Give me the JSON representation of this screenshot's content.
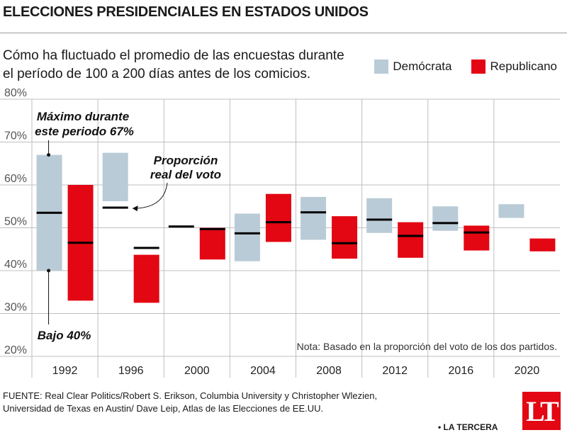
{
  "header": {
    "title": "ELECCIONES PRESIDENCIALES EN ESTADOS UNIDOS",
    "subtitle": "Cómo ha fluctuado el promedio de las encuestas durante el período de 100 a 200 días antes de los comicios."
  },
  "legend": {
    "dem_label": "Demócrata",
    "rep_label": "Republicano"
  },
  "colors": {
    "dem": "#b9cbd6",
    "rep": "#e30613",
    "actual": "#000000",
    "grid": "#bfbfbf"
  },
  "annotations": {
    "max": [
      "Máximo durante",
      "este periodo 67%"
    ],
    "min": "Bajo 40%",
    "actual": [
      "Proporción",
      "real del voto"
    ],
    "note": "Nota: Basado en la proporción del voto de los dos partidos."
  },
  "chart_data": {
    "type": "bar",
    "categories": [
      "1992",
      "1996",
      "2000",
      "2004",
      "2008",
      "2012",
      "2016",
      "2020"
    ],
    "ylim": [
      20,
      80
    ],
    "yticks": [
      20,
      30,
      40,
      50,
      60,
      70,
      80
    ],
    "ytick_labels": [
      "20%",
      "30%",
      "40%",
      "50%",
      "60%",
      "70%",
      "80%"
    ],
    "series": [
      {
        "name": "Demócrata",
        "ranges": [
          [
            40,
            67
          ],
          [
            56.2,
            67.5
          ],
          null,
          [
            42.2,
            53.3
          ],
          [
            47.2,
            57.2
          ],
          [
            48.8,
            56.9
          ],
          [
            49.3,
            55
          ],
          [
            52.3,
            55.5
          ]
        ],
        "actual": [
          53.5,
          54.7,
          50.3,
          48.7,
          53.6,
          51.9,
          51.1,
          null
        ]
      },
      {
        "name": "Republicano",
        "ranges": [
          [
            33,
            60
          ],
          [
            32.5,
            43.7
          ],
          [
            42.6,
            50
          ],
          [
            46.7,
            57.9
          ],
          [
            42.8,
            52.7
          ],
          [
            43,
            51.3
          ],
          [
            44.7,
            50.5
          ],
          [
            44.5,
            47.5
          ]
        ],
        "actual": [
          46.5,
          45.3,
          49.7,
          51.3,
          46.4,
          48.1,
          48.9,
          null
        ]
      }
    ],
    "note": "Nota: Basado en la proporción del voto de los dos partidos."
  },
  "footer": {
    "source_line1": "FUENTE: Real Clear Politics/Robert S. Erikson, Columbia University y Christopher Wlezien,",
    "source_line2": "Universidad de Texas en Austin/ Dave Leip, Atlas de las Elecciones de EE.UU.",
    "brand": "• LA TERCERA",
    "logo": "LT"
  }
}
